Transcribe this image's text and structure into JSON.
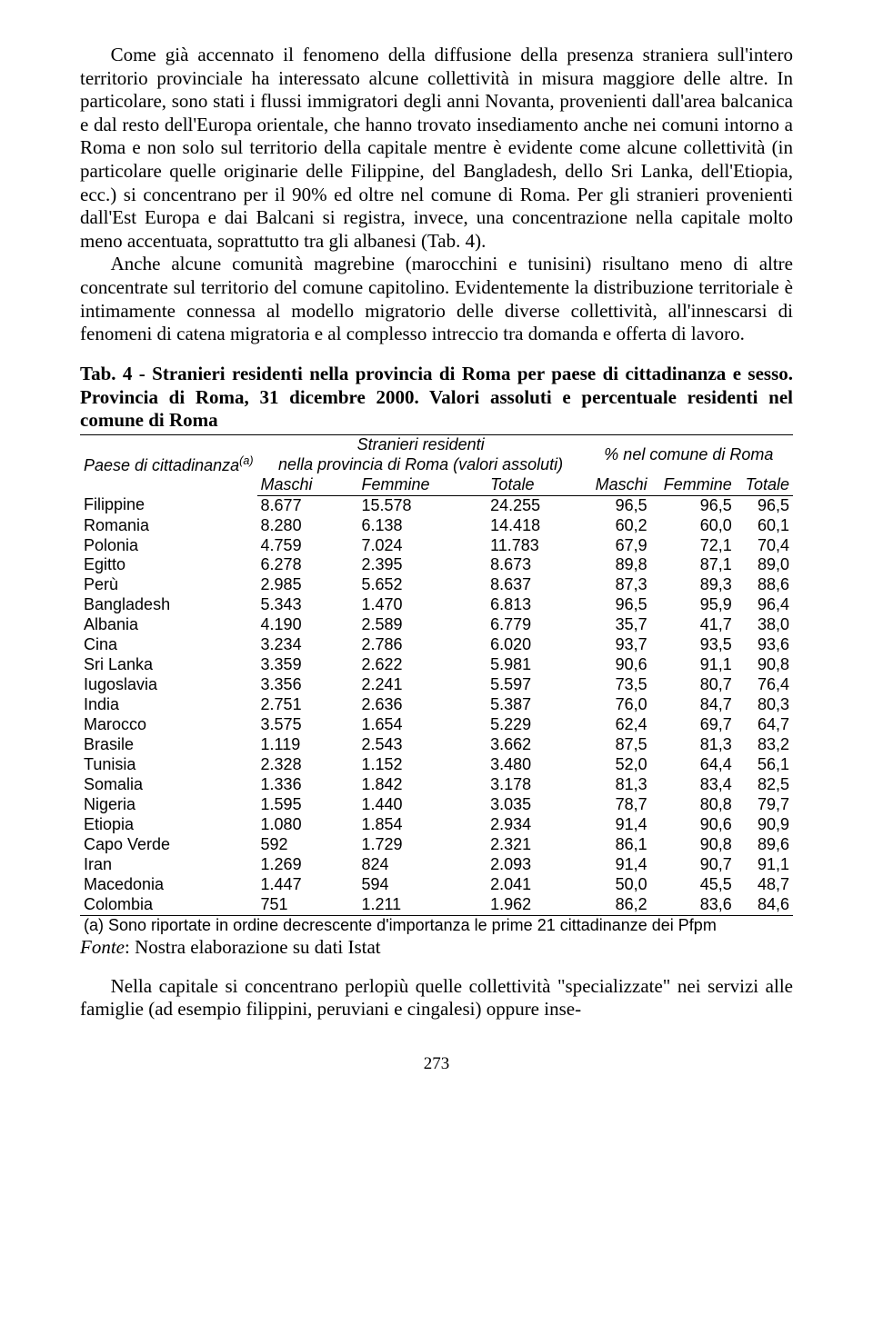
{
  "paragraphs": {
    "p1": "Come già accennato il fenomeno della diffusione della presenza straniera sull'intero territorio provinciale ha interessato alcune collettività in misura maggiore delle altre. In particolare, sono stati i flussi immigratori degli anni Novanta, provenienti dall'area balcanica e dal resto dell'Europa orientale, che hanno trovato insediamento anche nei comuni intorno a Roma e non solo sul territorio della capitale mentre è evidente come alcune collettività (in particolare quelle originarie delle Filippine, del Bangladesh, dello Sri Lanka, dell'Etiopia, ecc.) si concentrano per il 90% ed oltre nel comune di Roma. Per gli stranieri provenienti dall'Est Europa e dai Balcani si registra, invece, una concentrazione nella capitale molto meno accentuata, soprattutto tra gli albanesi (Tab. 4).",
    "p2": "Anche alcune comunità magrebine (marocchini e tunisini) risultano meno di altre concentrate sul territorio del comune capitolino. Evidentemente la distribuzione territoriale è intimamente connessa al modello migratorio delle diverse collettività, all'innescarsi di fenomeni di catena migratoria e al complesso intreccio tra domanda e offerta di lavoro.",
    "p3": "Nella capitale si concentrano perlopiù quelle collettività \"specializzate\" nei servizi alle famiglie (ad esempio filippini, peruviani e cingalesi) oppure inse-"
  },
  "table": {
    "caption": "Tab. 4 - Stranieri residenti nella provincia di Roma per paese di cittadinanza e sesso. Provincia di Roma, 31 dicembre 2000. Valori assoluti e percentuale residenti nel comune di Roma",
    "row_header_label": "Paese di cittadinanza",
    "row_header_note": "(a)",
    "group1_label": "Stranieri residenti",
    "group1_sub": "nella provincia di Roma (valori assoluti)",
    "group2_label": "% nel comune di Roma",
    "sub_headers": [
      "Maschi",
      "Femmine",
      "Totale",
      "Maschi",
      "Femmine",
      "Totale"
    ],
    "rows": [
      {
        "c": "Filippine",
        "m": "8.677",
        "f": "15.578",
        "t": "24.255",
        "pm": "96,5",
        "pf": "96,5",
        "pt": "96,5"
      },
      {
        "c": "Romania",
        "m": "8.280",
        "f": "6.138",
        "t": "14.418",
        "pm": "60,2",
        "pf": "60,0",
        "pt": "60,1"
      },
      {
        "c": "Polonia",
        "m": "4.759",
        "f": "7.024",
        "t": "11.783",
        "pm": "67,9",
        "pf": "72,1",
        "pt": "70,4"
      },
      {
        "c": "Egitto",
        "m": "6.278",
        "f": "2.395",
        "t": "8.673",
        "pm": "89,8",
        "pf": "87,1",
        "pt": "89,0"
      },
      {
        "c": "Perù",
        "m": "2.985",
        "f": "5.652",
        "t": "8.637",
        "pm": "87,3",
        "pf": "89,3",
        "pt": "88,6"
      },
      {
        "c": "Bangladesh",
        "m": "5.343",
        "f": "1.470",
        "t": "6.813",
        "pm": "96,5",
        "pf": "95,9",
        "pt": "96,4"
      },
      {
        "c": "Albania",
        "m": "4.190",
        "f": "2.589",
        "t": "6.779",
        "pm": "35,7",
        "pf": "41,7",
        "pt": "38,0"
      },
      {
        "c": "Cina",
        "m": "3.234",
        "f": "2.786",
        "t": "6.020",
        "pm": "93,7",
        "pf": "93,5",
        "pt": "93,6"
      },
      {
        "c": "Sri Lanka",
        "m": "3.359",
        "f": "2.622",
        "t": "5.981",
        "pm": "90,6",
        "pf": "91,1",
        "pt": "90,8"
      },
      {
        "c": "Iugoslavia",
        "m": "3.356",
        "f": "2.241",
        "t": "5.597",
        "pm": "73,5",
        "pf": "80,7",
        "pt": "76,4"
      },
      {
        "c": "India",
        "m": "2.751",
        "f": "2.636",
        "t": "5.387",
        "pm": "76,0",
        "pf": "84,7",
        "pt": "80,3"
      },
      {
        "c": "Marocco",
        "m": "3.575",
        "f": "1.654",
        "t": "5.229",
        "pm": "62,4",
        "pf": "69,7",
        "pt": "64,7"
      },
      {
        "c": "Brasile",
        "m": "1.119",
        "f": "2.543",
        "t": "3.662",
        "pm": "87,5",
        "pf": "81,3",
        "pt": "83,2"
      },
      {
        "c": "Tunisia",
        "m": "2.328",
        "f": "1.152",
        "t": "3.480",
        "pm": "52,0",
        "pf": "64,4",
        "pt": "56,1"
      },
      {
        "c": "Somalia",
        "m": "1.336",
        "f": "1.842",
        "t": "3.178",
        "pm": "81,3",
        "pf": "83,4",
        "pt": "82,5"
      },
      {
        "c": "Nigeria",
        "m": "1.595",
        "f": "1.440",
        "t": "3.035",
        "pm": "78,7",
        "pf": "80,8",
        "pt": "79,7"
      },
      {
        "c": "Etiopia",
        "m": "1.080",
        "f": "1.854",
        "t": "2.934",
        "pm": "91,4",
        "pf": "90,6",
        "pt": "90,9"
      },
      {
        "c": "Capo Verde",
        "m": "592",
        "f": "1.729",
        "t": "2.321",
        "pm": "86,1",
        "pf": "90,8",
        "pt": "89,6"
      },
      {
        "c": "Iran",
        "m": "1.269",
        "f": "824",
        "t": "2.093",
        "pm": "91,4",
        "pf": "90,7",
        "pt": "91,1"
      },
      {
        "c": "Macedonia",
        "m": "1.447",
        "f": "594",
        "t": "2.041",
        "pm": "50,0",
        "pf": "45,5",
        "pt": "48,7"
      },
      {
        "c": "Colombia",
        "m": "751",
        "f": "1.211",
        "t": "1.962",
        "pm": "86,2",
        "pf": "83,6",
        "pt": "84,6"
      }
    ],
    "footnote": "(a) Sono riportate in ordine decrescente d'importanza le prime 21 cittadinanze dei Pfpm",
    "source_label": "Fonte",
    "source_text": ": Nostra elaborazione su dati Istat"
  },
  "page_number": "273"
}
